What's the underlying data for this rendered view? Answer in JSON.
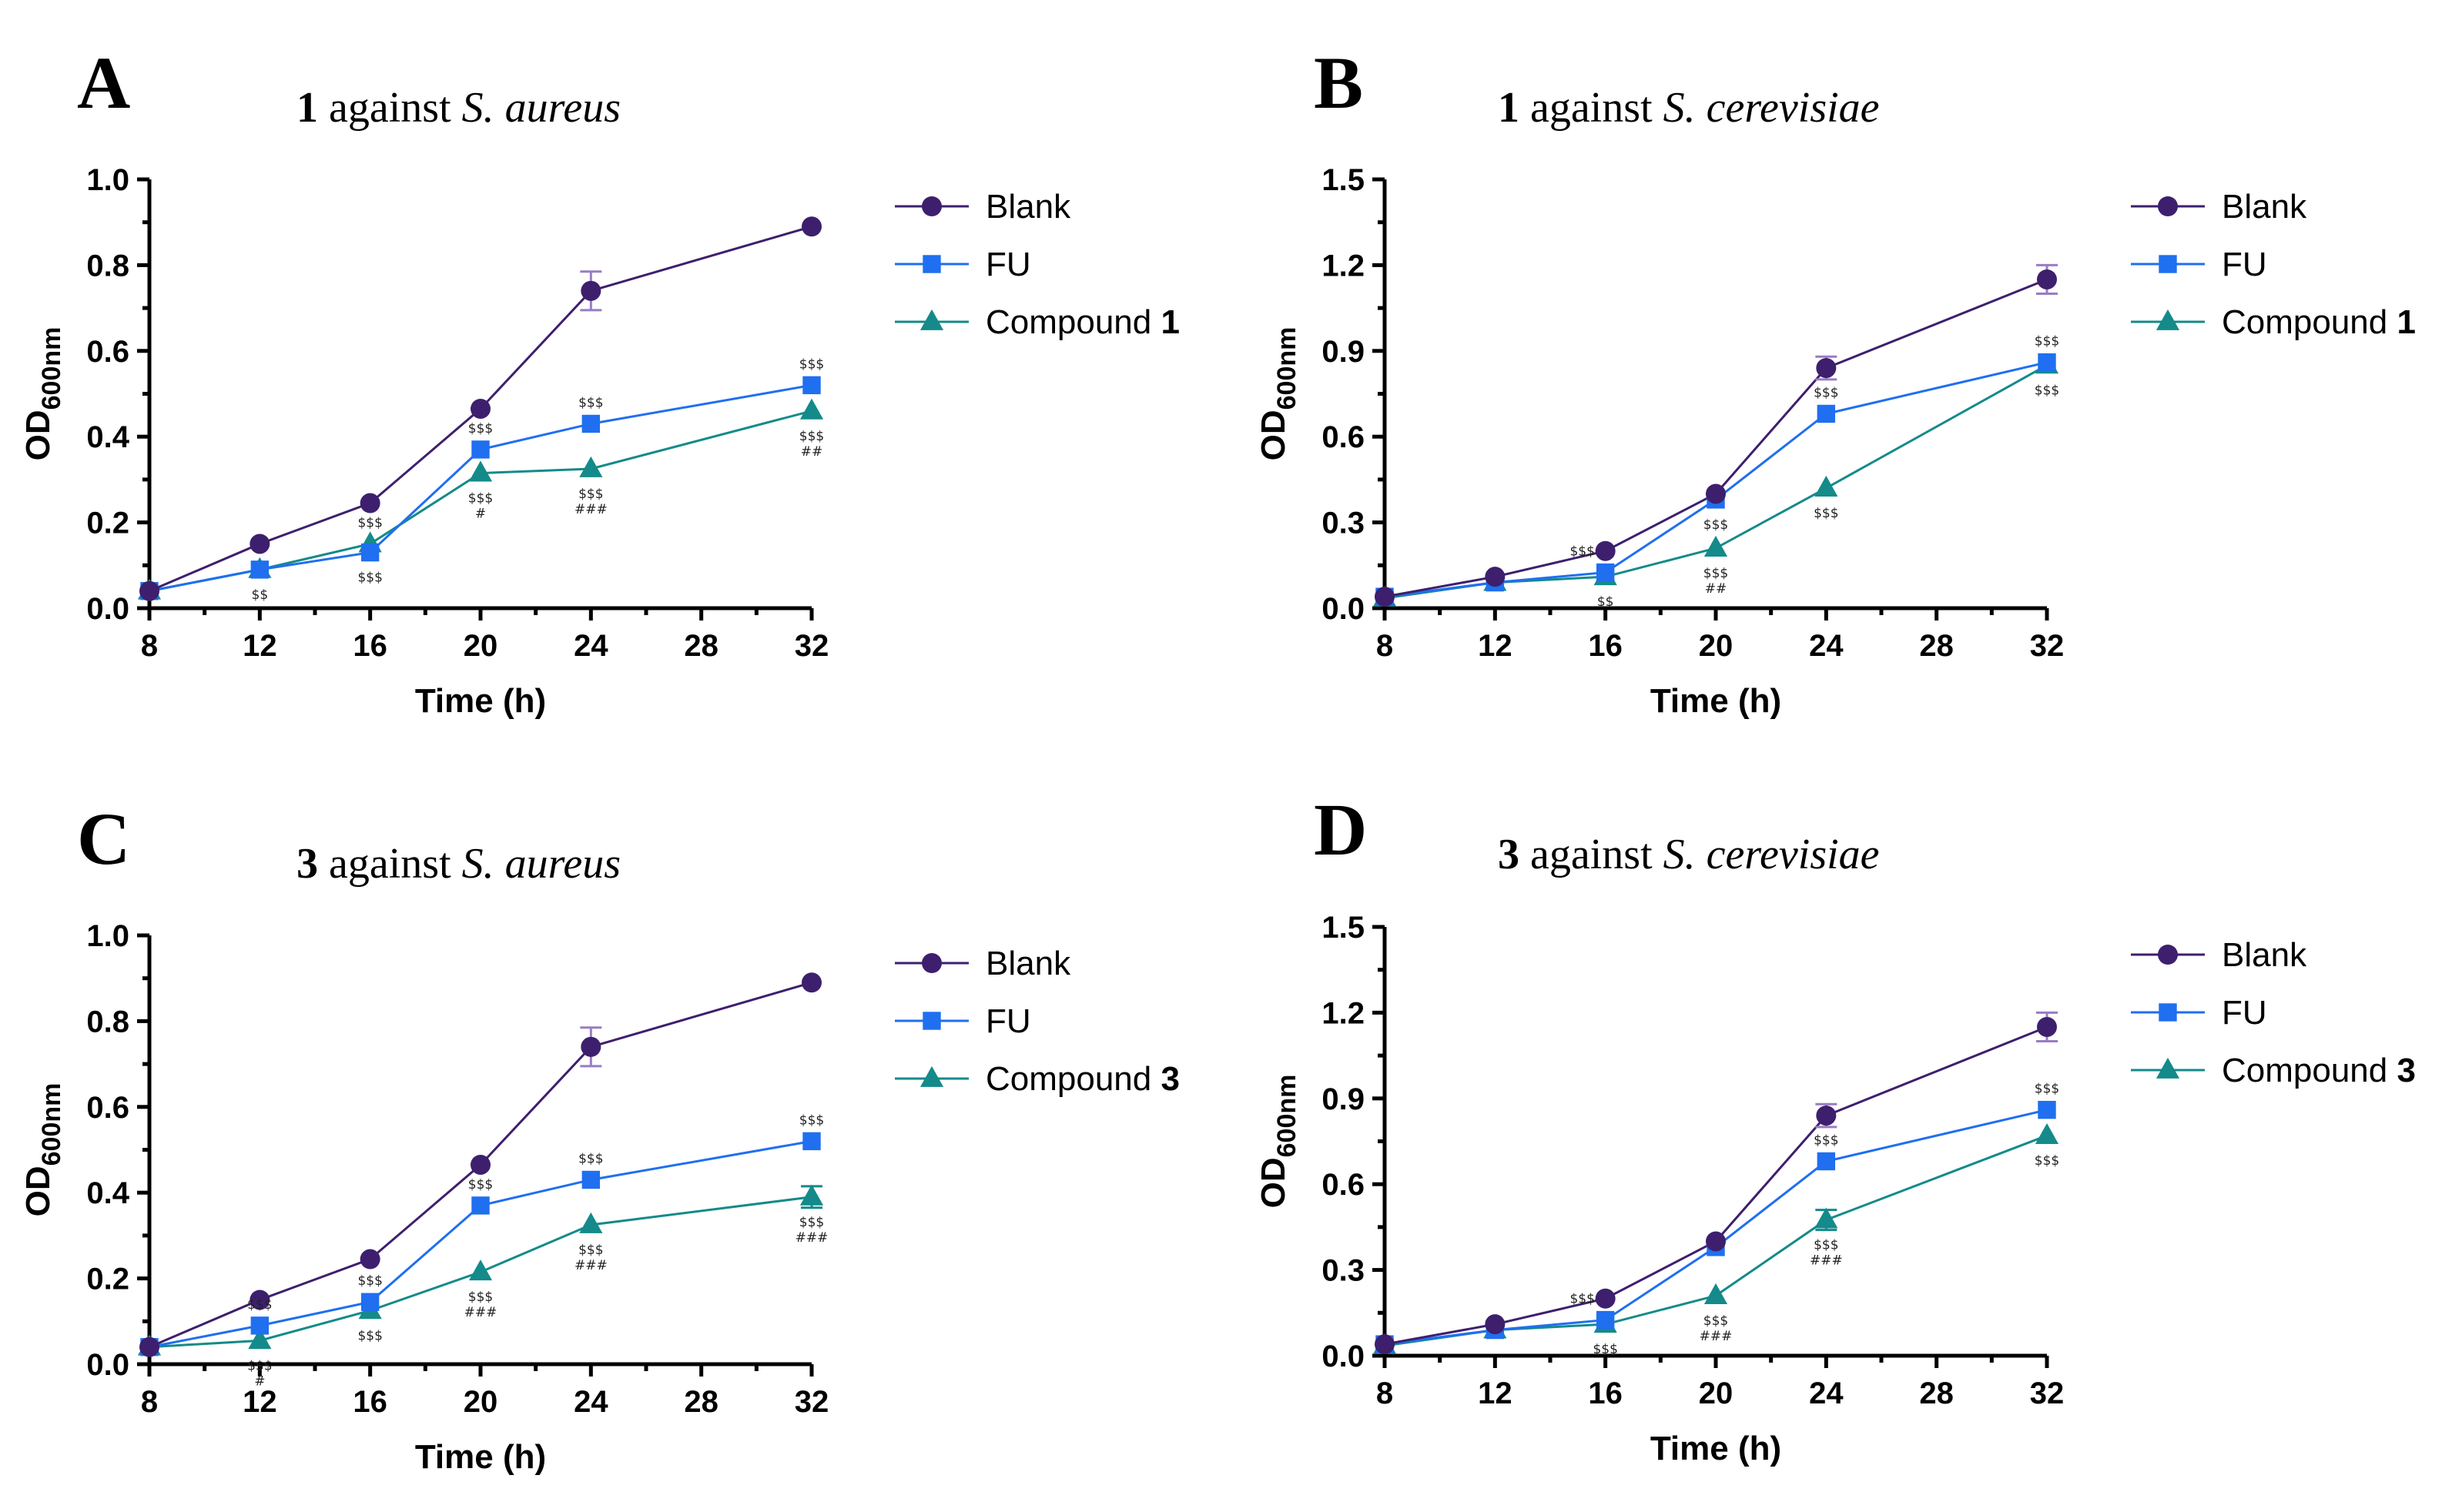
{
  "colors": {
    "Blank": "#3d1f6e",
    "FU": "#1f6ff0",
    "Compound": "#148a8a",
    "errorbar": "#9a7cc4"
  },
  "chart_data": [
    {
      "panel": "A",
      "type": "line",
      "title_bold": "1",
      "title_rest": " against ",
      "title_species": "S. aureus",
      "xlabel": "Time (h)",
      "ylabel_main": "OD",
      "ylabel_sub": "600nm",
      "xlim": [
        8,
        32
      ],
      "ylim": [
        0,
        1.0
      ],
      "xticks": [
        "8",
        "12",
        "16",
        "20",
        "24",
        "28",
        "32"
      ],
      "yticks": [
        "0.0",
        "0.2",
        "0.4",
        "0.6",
        "0.8",
        "1.0"
      ],
      "x": [
        8,
        12,
        16,
        20,
        24,
        32
      ],
      "series": [
        {
          "name": "Blank",
          "legend_bold": "",
          "marker": "circle",
          "values": [
            0.04,
            0.15,
            0.245,
            0.465,
            0.74,
            0.89
          ],
          "errors": [
            0,
            0,
            0,
            0,
            0.045,
            0
          ]
        },
        {
          "name": "FU",
          "legend_bold": "",
          "marker": "square",
          "values": [
            0.04,
            0.09,
            0.13,
            0.37,
            0.43,
            0.52
          ],
          "errors": [
            0,
            0,
            0,
            0,
            0,
            0
          ]
        },
        {
          "name": "Compound ",
          "legend_bold": "1",
          "marker": "triangle",
          "values": [
            0.04,
            0.09,
            0.15,
            0.315,
            0.325,
            0.46
          ],
          "errors": [
            0,
            0,
            0,
            0,
            0,
            0
          ]
        }
      ],
      "annotations": [
        {
          "x": 12,
          "y": 0.09,
          "pos": "below",
          "text": "$$"
        },
        {
          "x": 16,
          "y": 0.15,
          "pos": "above",
          "text": "$$$"
        },
        {
          "x": 16,
          "y": 0.13,
          "pos": "below",
          "text": "$$$"
        },
        {
          "x": 20,
          "y": 0.37,
          "pos": "above",
          "text": "$$$"
        },
        {
          "x": 20,
          "y": 0.315,
          "pos": "below",
          "text": "$$$"
        },
        {
          "x": 20,
          "y": 0.315,
          "pos": "below2",
          "text": "#"
        },
        {
          "x": 24,
          "y": 0.43,
          "pos": "above",
          "text": "$$$"
        },
        {
          "x": 24,
          "y": 0.325,
          "pos": "below",
          "text": "$$$"
        },
        {
          "x": 24,
          "y": 0.325,
          "pos": "below2",
          "text": "###"
        },
        {
          "x": 32,
          "y": 0.52,
          "pos": "above",
          "text": "$$$"
        },
        {
          "x": 32,
          "y": 0.46,
          "pos": "below",
          "text": "$$$"
        },
        {
          "x": 32,
          "y": 0.46,
          "pos": "below2",
          "text": "##"
        }
      ]
    },
    {
      "panel": "B",
      "type": "line",
      "title_bold": "1",
      "title_rest": " against ",
      "title_species": "S. cerevisiae",
      "xlabel": "Time (h)",
      "ylabel_main": "OD",
      "ylabel_sub": "600nm",
      "xlim": [
        8,
        32
      ],
      "ylim": [
        0,
        1.5
      ],
      "xticks": [
        "8",
        "12",
        "16",
        "20",
        "24",
        "28",
        "32"
      ],
      "yticks": [
        "0.0",
        "0.3",
        "0.6",
        "0.9",
        "1.2",
        "1.5"
      ],
      "x": [
        8,
        12,
        16,
        20,
        24,
        32
      ],
      "series": [
        {
          "name": "Blank",
          "legend_bold": "",
          "marker": "circle",
          "values": [
            0.04,
            0.11,
            0.2,
            0.4,
            0.84,
            1.15
          ],
          "errors": [
            0,
            0,
            0,
            0,
            0.04,
            0.05
          ]
        },
        {
          "name": "FU",
          "legend_bold": "",
          "marker": "square",
          "values": [
            0.04,
            0.09,
            0.125,
            0.38,
            0.68,
            0.86
          ],
          "errors": [
            0,
            0,
            0,
            0,
            0,
            0
          ]
        },
        {
          "name": "Compound ",
          "legend_bold": "1",
          "marker": "triangle",
          "values": [
            0.035,
            0.09,
            0.11,
            0.21,
            0.42,
            0.85
          ],
          "errors": [
            0,
            0,
            0,
            0,
            0,
            0
          ]
        }
      ],
      "annotations": [
        {
          "x": 16,
          "y": 0.125,
          "pos": "aboveleft",
          "text": "$$$"
        },
        {
          "x": 16,
          "y": 0.11,
          "pos": "below",
          "text": "$$"
        },
        {
          "x": 20,
          "y": 0.38,
          "pos": "below",
          "text": "$$$"
        },
        {
          "x": 20,
          "y": 0.21,
          "pos": "below",
          "text": "$$$"
        },
        {
          "x": 20,
          "y": 0.21,
          "pos": "below2",
          "text": "##"
        },
        {
          "x": 24,
          "y": 0.68,
          "pos": "above",
          "text": "$$$"
        },
        {
          "x": 24,
          "y": 0.42,
          "pos": "below",
          "text": "$$$"
        },
        {
          "x": 32,
          "y": 0.86,
          "pos": "above",
          "text": "$$$"
        },
        {
          "x": 32,
          "y": 0.85,
          "pos": "below",
          "text": "$$$"
        }
      ]
    },
    {
      "panel": "C",
      "type": "line",
      "title_bold": "3",
      "title_rest": " against ",
      "title_species": "S. aureus",
      "xlabel": "Time (h)",
      "ylabel_main": "OD",
      "ylabel_sub": "600nm",
      "xlim": [
        8,
        32
      ],
      "ylim": [
        0,
        1.0
      ],
      "xticks": [
        "8",
        "12",
        "16",
        "20",
        "24",
        "28",
        "32"
      ],
      "yticks": [
        "0.0",
        "0.2",
        "0.4",
        "0.6",
        "0.8",
        "1.0"
      ],
      "x": [
        8,
        12,
        16,
        20,
        24,
        32
      ],
      "series": [
        {
          "name": "Blank",
          "legend_bold": "",
          "marker": "circle",
          "values": [
            0.04,
            0.15,
            0.245,
            0.465,
            0.74,
            0.89
          ],
          "errors": [
            0,
            0,
            0,
            0,
            0.045,
            0
          ]
        },
        {
          "name": "FU",
          "legend_bold": "",
          "marker": "square",
          "values": [
            0.04,
            0.09,
            0.145,
            0.37,
            0.43,
            0.52
          ],
          "errors": [
            0,
            0,
            0,
            0,
            0,
            0
          ]
        },
        {
          "name": "Compound ",
          "legend_bold": "3",
          "marker": "triangle",
          "values": [
            0.04,
            0.055,
            0.125,
            0.215,
            0.325,
            0.39
          ],
          "errors": [
            0,
            0,
            0,
            0,
            0,
            0.025
          ]
        }
      ],
      "annotations": [
        {
          "x": 12,
          "y": 0.09,
          "pos": "above",
          "text": "$$$"
        },
        {
          "x": 12,
          "y": 0.055,
          "pos": "below",
          "text": "$$$"
        },
        {
          "x": 12,
          "y": 0.055,
          "pos": "below2",
          "text": "#"
        },
        {
          "x": 16,
          "y": 0.145,
          "pos": "above",
          "text": "$$$"
        },
        {
          "x": 16,
          "y": 0.125,
          "pos": "below",
          "text": "$$$"
        },
        {
          "x": 20,
          "y": 0.37,
          "pos": "above",
          "text": "$$$"
        },
        {
          "x": 20,
          "y": 0.215,
          "pos": "below",
          "text": "$$$"
        },
        {
          "x": 20,
          "y": 0.215,
          "pos": "below2",
          "text": "###"
        },
        {
          "x": 24,
          "y": 0.43,
          "pos": "above",
          "text": "$$$"
        },
        {
          "x": 24,
          "y": 0.325,
          "pos": "below",
          "text": "$$$"
        },
        {
          "x": 24,
          "y": 0.325,
          "pos": "below2",
          "text": "###"
        },
        {
          "x": 32,
          "y": 0.52,
          "pos": "above",
          "text": "$$$"
        },
        {
          "x": 32,
          "y": 0.39,
          "pos": "below",
          "text": "$$$"
        },
        {
          "x": 32,
          "y": 0.39,
          "pos": "below2",
          "text": "###"
        }
      ]
    },
    {
      "panel": "D",
      "type": "line",
      "title_bold": "3",
      "title_rest": " against ",
      "title_species": "S. cerevisiae",
      "xlabel": "Time (h)",
      "ylabel_main": "OD",
      "ylabel_sub": "600nm",
      "xlim": [
        8,
        32
      ],
      "ylim": [
        0,
        1.5
      ],
      "xticks": [
        "8",
        "12",
        "16",
        "20",
        "24",
        "28",
        "32"
      ],
      "yticks": [
        "0.0",
        "0.3",
        "0.6",
        "0.9",
        "1.2",
        "1.5"
      ],
      "x": [
        8,
        12,
        16,
        20,
        24,
        32
      ],
      "series": [
        {
          "name": "Blank",
          "legend_bold": "",
          "marker": "circle",
          "values": [
            0.04,
            0.11,
            0.2,
            0.4,
            0.84,
            1.15
          ],
          "errors": [
            0,
            0,
            0,
            0,
            0.04,
            0.05
          ]
        },
        {
          "name": "FU",
          "legend_bold": "",
          "marker": "square",
          "values": [
            0.04,
            0.09,
            0.125,
            0.38,
            0.68,
            0.86
          ],
          "errors": [
            0,
            0,
            0,
            0,
            0,
            0
          ]
        },
        {
          "name": "Compound ",
          "legend_bold": "3",
          "marker": "triangle",
          "values": [
            0.035,
            0.09,
            0.11,
            0.21,
            0.475,
            0.77
          ],
          "errors": [
            0,
            0,
            0,
            0,
            0.035,
            0
          ]
        }
      ],
      "annotations": [
        {
          "x": 16,
          "y": 0.125,
          "pos": "aboveleft",
          "text": "$$$"
        },
        {
          "x": 16,
          "y": 0.11,
          "pos": "below",
          "text": "$$$"
        },
        {
          "x": 20,
          "y": 0.21,
          "pos": "below",
          "text": "$$$"
        },
        {
          "x": 20,
          "y": 0.21,
          "pos": "below2",
          "text": "###"
        },
        {
          "x": 24,
          "y": 0.68,
          "pos": "above",
          "text": "$$$"
        },
        {
          "x": 24,
          "y": 0.475,
          "pos": "below",
          "text": "$$$"
        },
        {
          "x": 24,
          "y": 0.475,
          "pos": "below2",
          "text": "###"
        },
        {
          "x": 32,
          "y": 0.86,
          "pos": "above",
          "text": "$$$"
        },
        {
          "x": 32,
          "y": 0.77,
          "pos": "below",
          "text": "$$$"
        }
      ]
    }
  ]
}
